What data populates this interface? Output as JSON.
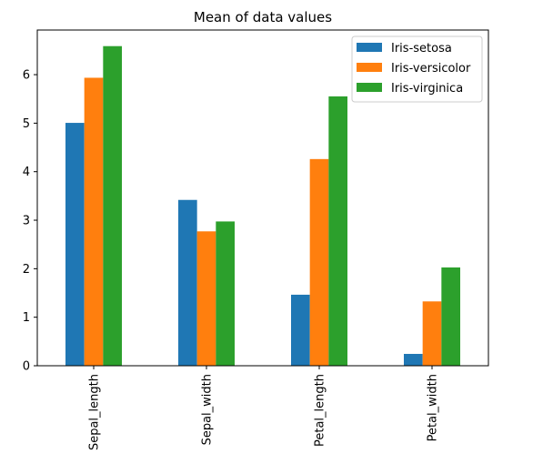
{
  "chart_data": {
    "type": "bar",
    "title": "Mean of data values",
    "xlabel": "",
    "ylabel": "",
    "categories": [
      "Sepal_length",
      "Sepal_width",
      "Petal_length",
      "Petal_width"
    ],
    "series": [
      {
        "name": "Iris-setosa",
        "color": "#1f77b4",
        "values": [
          5.006,
          3.418,
          1.464,
          0.244
        ]
      },
      {
        "name": "Iris-versicolor",
        "color": "#ff7f0e",
        "values": [
          5.936,
          2.77,
          4.26,
          1.326
        ]
      },
      {
        "name": "Iris-virginica",
        "color": "#2ca02c",
        "values": [
          6.588,
          2.974,
          5.552,
          2.026
        ]
      }
    ],
    "ylim": [
      0,
      6.92
    ],
    "yticks": [
      0,
      1,
      2,
      3,
      4,
      5,
      6
    ],
    "grid": false,
    "legend_position": "top-right"
  }
}
